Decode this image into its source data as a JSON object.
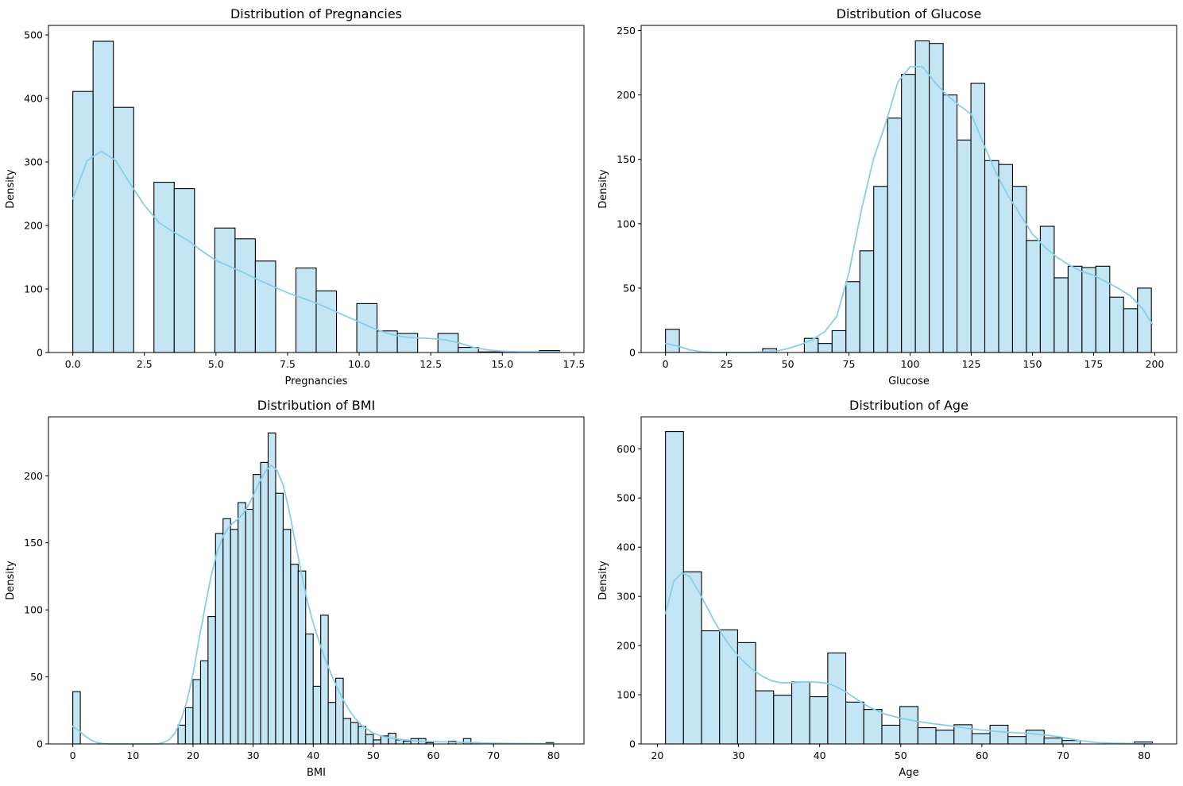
{
  "figure": {
    "background": "#ffffff"
  },
  "style": {
    "bar_fill": "#c4e5f4",
    "bar_edge": "#000000",
    "kde_color": "#87ceeb"
  },
  "chart_data": [
    {
      "type": "bar",
      "title": "Distribution of Pregnancies",
      "xlabel": "Pregnancies",
      "ylabel": "Density",
      "xlim": [
        -0.85,
        17.85
      ],
      "ylim": [
        0,
        515
      ],
      "xticks": [
        0,
        2.5,
        5,
        7.5,
        10,
        12.5,
        15,
        17.5
      ],
      "xtick_labels": [
        "0.0",
        "2.5",
        "5.0",
        "7.5",
        "10.0",
        "12.5",
        "15.0",
        "17.5"
      ],
      "yticks": [
        0,
        100,
        200,
        300,
        400,
        500
      ],
      "ytick_labels": [
        "0",
        "100",
        "200",
        "300",
        "400",
        "500"
      ],
      "grid": false,
      "bins": [
        {
          "x0": 0,
          "x1": 0.708,
          "count": 411
        },
        {
          "x0": 0.708,
          "x1": 1.417,
          "count": 490
        },
        {
          "x0": 1.417,
          "x1": 2.125,
          "count": 386
        },
        {
          "x0": 2.125,
          "x1": 2.833,
          "count": 0
        },
        {
          "x0": 2.833,
          "x1": 3.542,
          "count": 268
        },
        {
          "x0": 3.542,
          "x1": 4.25,
          "count": 258
        },
        {
          "x0": 4.25,
          "x1": 4.958,
          "count": 0
        },
        {
          "x0": 4.958,
          "x1": 5.667,
          "count": 196
        },
        {
          "x0": 5.667,
          "x1": 6.375,
          "count": 179
        },
        {
          "x0": 6.375,
          "x1": 7.083,
          "count": 144
        },
        {
          "x0": 7.083,
          "x1": 7.792,
          "count": 0
        },
        {
          "x0": 7.792,
          "x1": 8.5,
          "count": 133
        },
        {
          "x0": 8.5,
          "x1": 9.208,
          "count": 97
        },
        {
          "x0": 9.208,
          "x1": 9.917,
          "count": 0
        },
        {
          "x0": 9.917,
          "x1": 10.625,
          "count": 77
        },
        {
          "x0": 10.625,
          "x1": 11.333,
          "count": 34
        },
        {
          "x0": 11.333,
          "x1": 12.042,
          "count": 30
        },
        {
          "x0": 12.042,
          "x1": 12.75,
          "count": 0
        },
        {
          "x0": 12.75,
          "x1": 13.458,
          "count": 30
        },
        {
          "x0": 13.458,
          "x1": 14.167,
          "count": 8
        },
        {
          "x0": 14.167,
          "x1": 14.875,
          "count": 1
        },
        {
          "x0": 14.875,
          "x1": 15.583,
          "count": 1
        },
        {
          "x0": 15.583,
          "x1": 16.292,
          "count": 0
        },
        {
          "x0": 16.292,
          "x1": 17,
          "count": 3
        }
      ],
      "kde": {
        "x": [
          0,
          0.5,
          1,
          1.5,
          2,
          2.5,
          3,
          3.5,
          4,
          4.5,
          5,
          5.5,
          6,
          6.5,
          7,
          7.5,
          8,
          8.5,
          9,
          9.5,
          10,
          10.5,
          11,
          11.5,
          12,
          12.5,
          13,
          13.5,
          14,
          14.5,
          15,
          15.5,
          16,
          16.5,
          17
        ],
        "y": [
          242,
          302,
          317,
          302,
          266,
          232,
          205,
          190,
          177,
          160,
          145,
          135,
          125,
          114,
          104,
          94,
          86,
          78,
          68,
          58,
          48,
          38,
          30,
          25,
          23,
          22,
          20,
          15,
          8,
          4,
          2,
          1,
          1,
          1,
          1
        ]
      }
    },
    {
      "type": "bar",
      "title": "Distribution of Glucose",
      "xlabel": "Glucose",
      "ylabel": "Density",
      "xlim": [
        -9.95,
        208.95
      ],
      "ylim": [
        0,
        254
      ],
      "xticks": [
        0,
        25,
        50,
        75,
        100,
        125,
        150,
        175,
        200
      ],
      "xtick_labels": [
        "0",
        "25",
        "50",
        "75",
        "100",
        "125",
        "150",
        "175",
        "200"
      ],
      "yticks": [
        0,
        50,
        100,
        150,
        200,
        250
      ],
      "ytick_labels": [
        "0",
        "50",
        "100",
        "150",
        "200",
        "250"
      ],
      "grid": false,
      "bins": [
        {
          "x0": 0,
          "x1": 5.67,
          "count": 18
        },
        {
          "x0": 5.67,
          "x1": 11.35,
          "count": 0
        },
        {
          "x0": 11.35,
          "x1": 17.02,
          "count": 0
        },
        {
          "x0": 17.02,
          "x1": 22.7,
          "count": 0
        },
        {
          "x0": 22.7,
          "x1": 28.37,
          "count": 0
        },
        {
          "x0": 28.37,
          "x1": 34.05,
          "count": 0
        },
        {
          "x0": 34.05,
          "x1": 39.72,
          "count": 0
        },
        {
          "x0": 39.72,
          "x1": 45.4,
          "count": 3
        },
        {
          "x0": 45.4,
          "x1": 51.07,
          "count": 0
        },
        {
          "x0": 51.07,
          "x1": 56.75,
          "count": 0
        },
        {
          "x0": 56.75,
          "x1": 62.42,
          "count": 11
        },
        {
          "x0": 62.42,
          "x1": 68.1,
          "count": 7
        },
        {
          "x0": 68.1,
          "x1": 73.77,
          "count": 17
        },
        {
          "x0": 73.77,
          "x1": 79.45,
          "count": 55
        },
        {
          "x0": 79.45,
          "x1": 85.12,
          "count": 79
        },
        {
          "x0": 85.12,
          "x1": 90.8,
          "count": 129
        },
        {
          "x0": 90.8,
          "x1": 96.47,
          "count": 182
        },
        {
          "x0": 96.47,
          "x1": 102.15,
          "count": 216
        },
        {
          "x0": 102.15,
          "x1": 107.82,
          "count": 242
        },
        {
          "x0": 107.82,
          "x1": 113.5,
          "count": 240
        },
        {
          "x0": 113.5,
          "x1": 119.17,
          "count": 200
        },
        {
          "x0": 119.17,
          "x1": 124.85,
          "count": 165
        },
        {
          "x0": 124.85,
          "x1": 130.52,
          "count": 209
        },
        {
          "x0": 130.52,
          "x1": 136.2,
          "count": 149
        },
        {
          "x0": 136.2,
          "x1": 141.87,
          "count": 146
        },
        {
          "x0": 141.87,
          "x1": 147.55,
          "count": 129
        },
        {
          "x0": 147.55,
          "x1": 153.22,
          "count": 87
        },
        {
          "x0": 153.22,
          "x1": 158.9,
          "count": 98
        },
        {
          "x0": 158.9,
          "x1": 164.57,
          "count": 58
        },
        {
          "x0": 164.57,
          "x1": 170.25,
          "count": 67
        },
        {
          "x0": 170.25,
          "x1": 175.92,
          "count": 66
        },
        {
          "x0": 175.92,
          "x1": 181.6,
          "count": 67
        },
        {
          "x0": 181.6,
          "x1": 187.27,
          "count": 43
        },
        {
          "x0": 187.27,
          "x1": 192.95,
          "count": 34
        },
        {
          "x0": 192.95,
          "x1": 198.62,
          "count": 50
        }
      ],
      "kde": {
        "x": [
          0,
          5,
          10,
          15,
          20,
          25,
          30,
          35,
          40,
          45,
          50,
          55,
          60,
          65,
          70,
          75,
          80,
          85,
          90,
          95,
          100,
          105,
          110,
          115,
          120,
          125,
          130,
          135,
          140,
          145,
          150,
          155,
          160,
          165,
          170,
          175,
          180,
          185,
          190,
          195,
          199
        ],
        "y": [
          7,
          5,
          2,
          0.5,
          0,
          0,
          0,
          0,
          0.5,
          1,
          3,
          6,
          10,
          16,
          28,
          62,
          110,
          150,
          178,
          210,
          222,
          222,
          210,
          200,
          192,
          185,
          162,
          140,
          122,
          107,
          92,
          82,
          74,
          68,
          63,
          60,
          55,
          50,
          44,
          34,
          22
        ]
      }
    },
    {
      "type": "bar",
      "title": "Distribution of BMI",
      "xlabel": "BMI",
      "ylabel": "Density",
      "xlim": [
        -4.05,
        85.05
      ],
      "ylim": [
        0,
        244
      ],
      "xticks": [
        0,
        10,
        20,
        30,
        40,
        50,
        60,
        70,
        80
      ],
      "xtick_labels": [
        "0",
        "10",
        "20",
        "30",
        "40",
        "50",
        "60",
        "70",
        "80"
      ],
      "yticks": [
        0,
        50,
        100,
        150,
        200
      ],
      "ytick_labels": [
        "0",
        "50",
        "100",
        "150",
        "200"
      ],
      "grid": false,
      "bins": [
        {
          "x0": 0,
          "x1": 1.25,
          "count": 39
        },
        {
          "x0": 17.5,
          "x1": 18.75,
          "count": 14
        },
        {
          "x0": 18.75,
          "x1": 20,
          "count": 27
        },
        {
          "x0": 20,
          "x1": 21.25,
          "count": 48
        },
        {
          "x0": 21.25,
          "x1": 22.5,
          "count": 62
        },
        {
          "x0": 22.5,
          "x1": 23.75,
          "count": 95
        },
        {
          "x0": 23.75,
          "x1": 25,
          "count": 157
        },
        {
          "x0": 25,
          "x1": 26.25,
          "count": 168
        },
        {
          "x0": 26.25,
          "x1": 27.5,
          "count": 160
        },
        {
          "x0": 27.5,
          "x1": 28.75,
          "count": 180
        },
        {
          "x0": 28.75,
          "x1": 30,
          "count": 175
        },
        {
          "x0": 30,
          "x1": 31.25,
          "count": 201
        },
        {
          "x0": 31.25,
          "x1": 32.5,
          "count": 210
        },
        {
          "x0": 32.5,
          "x1": 33.75,
          "count": 232
        },
        {
          "x0": 33.75,
          "x1": 35,
          "count": 187
        },
        {
          "x0": 35,
          "x1": 36.25,
          "count": 160
        },
        {
          "x0": 36.25,
          "x1": 37.5,
          "count": 134
        },
        {
          "x0": 37.5,
          "x1": 38.75,
          "count": 129
        },
        {
          "x0": 38.75,
          "x1": 40,
          "count": 82
        },
        {
          "x0": 40,
          "x1": 41.25,
          "count": 43
        },
        {
          "x0": 41.25,
          "x1": 42.5,
          "count": 96
        },
        {
          "x0": 42.5,
          "x1": 43.75,
          "count": 31
        },
        {
          "x0": 43.75,
          "x1": 45,
          "count": 49
        },
        {
          "x0": 45,
          "x1": 46.25,
          "count": 19
        },
        {
          "x0": 46.25,
          "x1": 47.5,
          "count": 16
        },
        {
          "x0": 47.5,
          "x1": 48.75,
          "count": 13
        },
        {
          "x0": 48.75,
          "x1": 50,
          "count": 7
        },
        {
          "x0": 50,
          "x1": 51.25,
          "count": 3
        },
        {
          "x0": 51.25,
          "x1": 52.5,
          "count": 6
        },
        {
          "x0": 52.5,
          "x1": 53.75,
          "count": 8
        },
        {
          "x0": 53.75,
          "x1": 55,
          "count": 3
        },
        {
          "x0": 55,
          "x1": 56.25,
          "count": 2
        },
        {
          "x0": 56.25,
          "x1": 57.5,
          "count": 4
        },
        {
          "x0": 57.5,
          "x1": 58.75,
          "count": 4
        },
        {
          "x0": 58.75,
          "x1": 60,
          "count": 1
        },
        {
          "x0": 62.5,
          "x1": 63.75,
          "count": 2
        },
        {
          "x0": 65,
          "x1": 66.25,
          "count": 4
        },
        {
          "x0": 66.25,
          "x1": 67.5,
          "count": 1
        },
        {
          "x0": 78.75,
          "x1": 80,
          "count": 1
        }
      ],
      "kde": {
        "x": [
          0,
          1,
          2,
          3,
          4,
          5,
          6,
          8,
          10,
          12,
          14,
          15,
          16,
          17,
          18,
          19,
          20,
          21,
          22,
          23,
          24,
          25,
          26,
          27,
          28,
          29,
          30,
          31,
          32,
          33,
          34,
          35,
          36,
          37,
          38,
          39,
          40,
          41,
          42,
          43,
          44,
          45,
          46,
          47,
          48,
          50,
          52,
          55,
          58,
          62,
          66,
          70,
          75,
          80
        ],
        "y": [
          13,
          10,
          6,
          3,
          1,
          0.3,
          0,
          0,
          0,
          0,
          0,
          1,
          3,
          8,
          18,
          32,
          52,
          78,
          102,
          125,
          143,
          155,
          162,
          166,
          170,
          176,
          185,
          195,
          203,
          208,
          204,
          193,
          174,
          151,
          128,
          107,
          90,
          76,
          63,
          52,
          42,
          33,
          25,
          19,
          14,
          8,
          5,
          3,
          2,
          1.5,
          1,
          0.5,
          0.3,
          0.2
        ]
      }
    },
    {
      "type": "bar",
      "title": "Distribution of Age",
      "xlabel": "Age",
      "ylabel": "Density",
      "xlim": [
        18,
        84
      ],
      "ylim": [
        0,
        665
      ],
      "xticks": [
        20,
        30,
        40,
        50,
        60,
        70,
        80
      ],
      "xtick_labels": [
        "20",
        "30",
        "40",
        "50",
        "60",
        "70",
        "80"
      ],
      "yticks": [
        0,
        100,
        200,
        300,
        400,
        500,
        600
      ],
      "ytick_labels": [
        "0",
        "100",
        "200",
        "300",
        "400",
        "500",
        "600"
      ],
      "grid": false,
      "bins": [
        {
          "x0": 21,
          "x1": 23.22,
          "count": 635
        },
        {
          "x0": 23.22,
          "x1": 25.44,
          "count": 350
        },
        {
          "x0": 25.44,
          "x1": 27.67,
          "count": 230
        },
        {
          "x0": 27.67,
          "x1": 29.89,
          "count": 232
        },
        {
          "x0": 29.89,
          "x1": 32.11,
          "count": 206
        },
        {
          "x0": 32.11,
          "x1": 34.33,
          "count": 108
        },
        {
          "x0": 34.33,
          "x1": 36.56,
          "count": 99
        },
        {
          "x0": 36.56,
          "x1": 38.78,
          "count": 126
        },
        {
          "x0": 38.78,
          "x1": 41,
          "count": 96
        },
        {
          "x0": 41,
          "x1": 43.22,
          "count": 185
        },
        {
          "x0": 43.22,
          "x1": 45.44,
          "count": 85
        },
        {
          "x0": 45.44,
          "x1": 47.67,
          "count": 70
        },
        {
          "x0": 47.67,
          "x1": 49.89,
          "count": 38
        },
        {
          "x0": 49.89,
          "x1": 52.11,
          "count": 76
        },
        {
          "x0": 52.11,
          "x1": 54.33,
          "count": 33
        },
        {
          "x0": 54.33,
          "x1": 56.56,
          "count": 28
        },
        {
          "x0": 56.56,
          "x1": 58.78,
          "count": 39
        },
        {
          "x0": 58.78,
          "x1": 61,
          "count": 21
        },
        {
          "x0": 61,
          "x1": 63.22,
          "count": 38
        },
        {
          "x0": 63.22,
          "x1": 65.44,
          "count": 15
        },
        {
          "x0": 65.44,
          "x1": 67.67,
          "count": 28
        },
        {
          "x0": 67.67,
          "x1": 69.89,
          "count": 12
        },
        {
          "x0": 69.89,
          "x1": 72.11,
          "count": 7
        },
        {
          "x0": 72.11,
          "x1": 74.33,
          "count": 0
        },
        {
          "x0": 74.33,
          "x1": 76.56,
          "count": 0
        },
        {
          "x0": 76.56,
          "x1": 78.78,
          "count": 0
        },
        {
          "x0": 78.78,
          "x1": 81,
          "count": 4
        }
      ],
      "kde": {
        "x": [
          21,
          22,
          23,
          24,
          25,
          26,
          27,
          28,
          29,
          30,
          31,
          32,
          33,
          34,
          35,
          36,
          37,
          38,
          39,
          40,
          41,
          42,
          43,
          44,
          45,
          46,
          47,
          48,
          50,
          52,
          54,
          56,
          58,
          60,
          62,
          64,
          66,
          68,
          70,
          72,
          74,
          76,
          78,
          80,
          81
        ],
        "y": [
          265,
          330,
          348,
          340,
          312,
          282,
          250,
          222,
          198,
          178,
          162,
          148,
          137,
          129,
          125,
          124,
          125,
          126,
          126,
          125,
          123,
          117,
          108,
          97,
          86,
          76,
          68,
          61,
          52,
          46,
          41,
          37,
          32,
          28,
          25,
          23,
          21,
          18,
          13,
          7,
          3,
          1.5,
          1,
          0.5,
          0.3
        ]
      }
    }
  ]
}
